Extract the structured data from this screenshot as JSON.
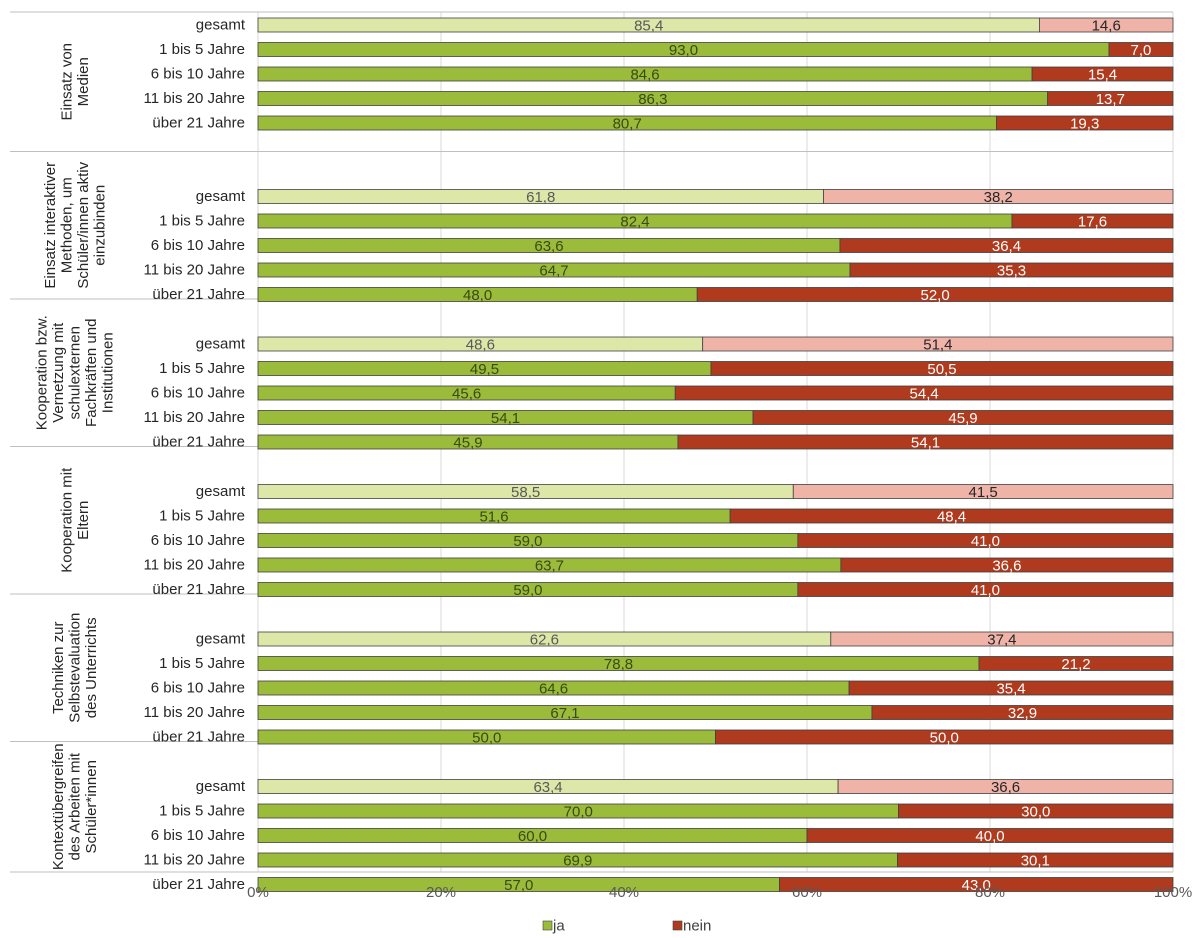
{
  "chart_data": {
    "type": "bar",
    "stacked": true,
    "orientation": "horizontal",
    "percent_scale": true,
    "xlim": [
      0,
      100
    ],
    "x_ticks": [
      "0%",
      "20%",
      "40%",
      "60%",
      "80%",
      "100%"
    ],
    "grid": "vertical",
    "legend_position": "bottom",
    "series_names": [
      "ja",
      "nein"
    ],
    "colors": {
      "ja": "#9bbb3b",
      "nein": "#b03a1e",
      "ja_total": "#dde8a8",
      "nein_total": "#f0b3a8"
    },
    "groups": [
      {
        "label_lines": [
          "Einsatz von",
          "Medien"
        ],
        "rows": [
          {
            "category": "gesamt",
            "ja": 85.4,
            "nein": 14.6,
            "ja_label": "85,4",
            "nein_label": "14,6"
          },
          {
            "category": "1 bis 5 Jahre",
            "ja": 93.0,
            "nein": 7.0,
            "ja_label": "93,0",
            "nein_label": "7,0"
          },
          {
            "category": "6 bis 10 Jahre",
            "ja": 84.6,
            "nein": 15.4,
            "ja_label": "84,6",
            "nein_label": "15,4"
          },
          {
            "category": "11 bis 20 Jahre",
            "ja": 86.3,
            "nein": 13.7,
            "ja_label": "86,3",
            "nein_label": "13,7"
          },
          {
            "category": "über 21 Jahre",
            "ja": 80.7,
            "nein": 19.3,
            "ja_label": "80,7",
            "nein_label": "19,3"
          }
        ]
      },
      {
        "label_lines": [
          "Einsatz interaktiver",
          "Methoden, um",
          "Schüler/innen aktiv",
          "einzubinden"
        ],
        "rows": [
          {
            "category": "gesamt",
            "ja": 61.8,
            "nein": 38.2,
            "ja_label": "61,8",
            "nein_label": "38,2"
          },
          {
            "category": "1 bis 5 Jahre",
            "ja": 82.4,
            "nein": 17.6,
            "ja_label": "82,4",
            "nein_label": "17,6"
          },
          {
            "category": "6 bis 10 Jahre",
            "ja": 63.6,
            "nein": 36.4,
            "ja_label": "63,6",
            "nein_label": "36,4"
          },
          {
            "category": "11 bis 20 Jahre",
            "ja": 64.7,
            "nein": 35.3,
            "ja_label": "64,7",
            "nein_label": "35,3"
          },
          {
            "category": "über 21 Jahre",
            "ja": 48.0,
            "nein": 52.0,
            "ja_label": "48,0",
            "nein_label": "52,0"
          }
        ]
      },
      {
        "label_lines": [
          "Kooperation bzw.",
          "Vernetzung mit",
          "schulexternen",
          "Fachkräften und",
          "Institutionen"
        ],
        "rows": [
          {
            "category": "gesamt",
            "ja": 48.6,
            "nein": 51.4,
            "ja_label": "48,6",
            "nein_label": "51,4"
          },
          {
            "category": "1 bis 5 Jahre",
            "ja": 49.5,
            "nein": 50.5,
            "ja_label": "49,5",
            "nein_label": "50,5"
          },
          {
            "category": "6 bis 10 Jahre",
            "ja": 45.6,
            "nein": 54.4,
            "ja_label": "45,6",
            "nein_label": "54,4"
          },
          {
            "category": "11 bis 20 Jahre",
            "ja": 54.1,
            "nein": 45.9,
            "ja_label": "54,1",
            "nein_label": "45,9"
          },
          {
            "category": "über 21 Jahre",
            "ja": 45.9,
            "nein": 54.1,
            "ja_label": "45,9",
            "nein_label": "54,1"
          }
        ]
      },
      {
        "label_lines": [
          "Kooperation mit",
          "Eltern"
        ],
        "rows": [
          {
            "category": "gesamt",
            "ja": 58.5,
            "nein": 41.5,
            "ja_label": "58,5",
            "nein_label": "41,5"
          },
          {
            "category": "1 bis 5 Jahre",
            "ja": 51.6,
            "nein": 48.4,
            "ja_label": "51,6",
            "nein_label": "48,4"
          },
          {
            "category": "6 bis 10 Jahre",
            "ja": 59.0,
            "nein": 41.0,
            "ja_label": "59,0",
            "nein_label": "41,0"
          },
          {
            "category": "11 bis 20 Jahre",
            "ja": 63.7,
            "nein": 36.6,
            "ja_label": "63,7",
            "nein_label": "36,6"
          },
          {
            "category": "über 21 Jahre",
            "ja": 59.0,
            "nein": 41.0,
            "ja_label": "59,0",
            "nein_label": "41,0"
          }
        ]
      },
      {
        "label_lines": [
          "Techniken zur",
          "Selbstevaluation",
          "des Unterrichts"
        ],
        "rows": [
          {
            "category": "gesamt",
            "ja": 62.6,
            "nein": 37.4,
            "ja_label": "62,6",
            "nein_label": "37,4"
          },
          {
            "category": "1 bis 5 Jahre",
            "ja": 78.8,
            "nein": 21.2,
            "ja_label": "78,8",
            "nein_label": "21,2"
          },
          {
            "category": "6 bis 10 Jahre",
            "ja": 64.6,
            "nein": 35.4,
            "ja_label": "64,6",
            "nein_label": "35,4"
          },
          {
            "category": "11 bis 20 Jahre",
            "ja": 67.1,
            "nein": 32.9,
            "ja_label": "67,1",
            "nein_label": "32,9"
          },
          {
            "category": "über 21 Jahre",
            "ja": 50.0,
            "nein": 50.0,
            "ja_label": "50,0",
            "nein_label": "50,0"
          }
        ]
      },
      {
        "label_lines": [
          "Kontextübergreifen",
          "des Arbeiten mit",
          "Schüler*innen"
        ],
        "rows": [
          {
            "category": "gesamt",
            "ja": 63.4,
            "nein": 36.6,
            "ja_label": "63,4",
            "nein_label": "36,6"
          },
          {
            "category": "1 bis 5 Jahre",
            "ja": 70.0,
            "nein": 30.0,
            "ja_label": "70,0",
            "nein_label": "30,0"
          },
          {
            "category": "6 bis 10 Jahre",
            "ja": 60.0,
            "nein": 40.0,
            "ja_label": "60,0",
            "nein_label": "40,0"
          },
          {
            "category": "11 bis 20 Jahre",
            "ja": 69.9,
            "nein": 30.1,
            "ja_label": "69,9",
            "nein_label": "30,1"
          },
          {
            "category": "über 21 Jahre",
            "ja": 57.0,
            "nein": 43.0,
            "ja_label": "57,0",
            "nein_label": "43,0"
          }
        ]
      }
    ]
  }
}
